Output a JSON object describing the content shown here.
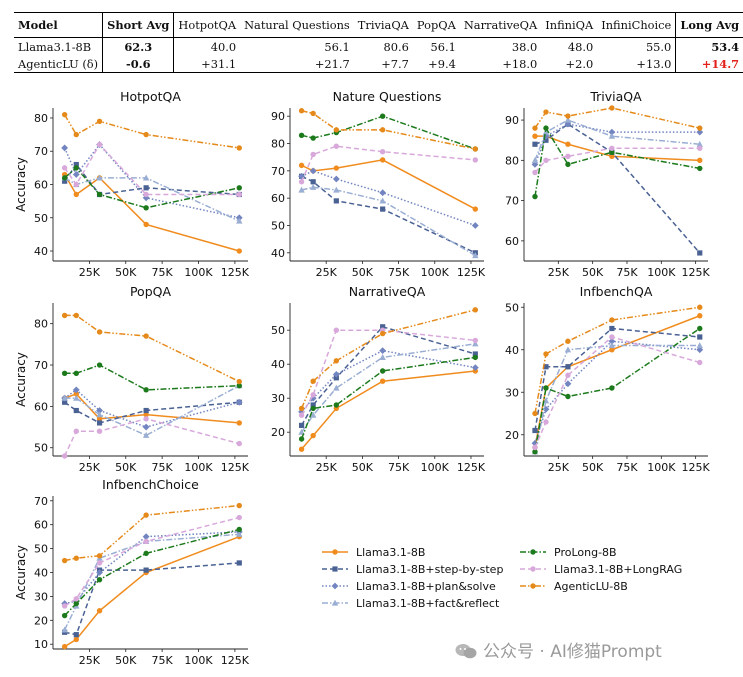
{
  "summary_table": {
    "headers": [
      "Model",
      "Short Avg",
      "HotpotQA",
      "Natural Questions",
      "TriviaQA",
      "PopQA",
      "NarrativeQA",
      "InfiniQA",
      "InfiniChoice",
      "Long Avg"
    ],
    "rows": [
      {
        "model": "Llama3.1-8B",
        "short_avg": "62.3",
        "values": [
          "40.0",
          "56.1",
          "80.6",
          "56.1",
          "38.0",
          "48.0",
          "55.0"
        ],
        "long_avg": "53.4"
      },
      {
        "model": "AgenticLU (δ)",
        "short_avg": "-0.6",
        "values": [
          "+31.1",
          "+21.7",
          "+7.7",
          "+9.4",
          "+18.0",
          "+2.0",
          "+13.0"
        ],
        "long_avg": "+14.7"
      }
    ]
  },
  "watermark": {
    "text": "公众号 · AI修猫Prompt"
  },
  "chart_data": {
    "type": "line",
    "x": [
      8,
      16,
      32,
      64,
      128
    ],
    "x_ticks": [
      25,
      50,
      75,
      100,
      125
    ],
    "x_tick_labels": [
      "25K",
      "50K",
      "75K",
      "100K",
      "125K"
    ],
    "xlim": [
      0,
      134
    ],
    "ylabel": "Accuracy",
    "series_styles": [
      {
        "name": "Llama3.1-8B",
        "color": "#f08c1e",
        "dash": "solid",
        "marker": "circle"
      },
      {
        "name": "Llama3.1-8B+step-by-step",
        "color": "#4a6193",
        "dash": "dashed",
        "marker": "square"
      },
      {
        "name": "Llama3.1-8B+plan&solve",
        "color": "#7285c0",
        "dash": "dotted",
        "marker": "diamond"
      },
      {
        "name": "Llama3.1-8B+fact&reflect",
        "color": "#9aaed3",
        "dash": "dashdot",
        "marker": "triangle"
      },
      {
        "name": "ProLong-8B",
        "color": "#1c7a1c",
        "dash": "dashdot",
        "marker": "circle"
      },
      {
        "name": "Llama3.1-8B+LongRAG",
        "color": "#d8a8db",
        "dash": "dashed",
        "marker": "circle"
      },
      {
        "name": "AgenticLU-8B",
        "color": "#e58a1a",
        "dash": "dashdotdot",
        "marker": "circle"
      }
    ],
    "subplots": [
      {
        "title": "HotpotQA",
        "ylim": [
          37,
          83
        ],
        "yticks": [
          40,
          50,
          60,
          70,
          80
        ],
        "series": [
          {
            "name": "Llama3.1-8B",
            "values": [
              63,
              57,
              62,
              48,
              40
            ]
          },
          {
            "name": "Llama3.1-8B+step-by-step",
            "values": [
              61,
              66,
              57,
              59,
              57
            ]
          },
          {
            "name": "Llama3.1-8B+plan&solve",
            "values": [
              71,
              63,
              72,
              56,
              50
            ]
          },
          {
            "name": "Llama3.1-8B+fact&reflect",
            "values": [
              62,
              60,
              62,
              62,
              49
            ]
          },
          {
            "name": "ProLong-8B",
            "values": [
              62,
              65,
              57,
              53,
              59
            ]
          },
          {
            "name": "Llama3.1-8B+LongRAG",
            "values": [
              65,
              60,
              72,
              57,
              57
            ]
          },
          {
            "name": "AgenticLU-8B",
            "values": [
              81,
              75,
              79,
              75,
              71
            ]
          }
        ]
      },
      {
        "title": "Nature Questions",
        "ylim": [
          37,
          93
        ],
        "yticks": [
          40,
          50,
          60,
          70,
          80,
          90
        ],
        "series": [
          {
            "name": "Llama3.1-8B",
            "values": [
              72,
              70,
              71,
              74,
              56
            ]
          },
          {
            "name": "Llama3.1-8B+step-by-step",
            "values": [
              68,
              66,
              59,
              56,
              40
            ]
          },
          {
            "name": "Llama3.1-8B+plan&solve",
            "values": [
              68,
              70,
              67,
              62,
              50
            ]
          },
          {
            "name": "Llama3.1-8B+fact&reflect",
            "values": [
              63,
              64,
              63,
              59,
              39
            ]
          },
          {
            "name": "ProLong-8B",
            "values": [
              83,
              82,
              84,
              90,
              78
            ]
          },
          {
            "name": "Llama3.1-8B+LongRAG",
            "values": [
              66,
              76,
              79,
              77,
              74
            ]
          },
          {
            "name": "AgenticLU-8B",
            "values": [
              92,
              91,
              85,
              85,
              78
            ]
          }
        ]
      },
      {
        "title": "TriviaQA",
        "ylim": [
          55,
          93
        ],
        "yticks": [
          60,
          70,
          80,
          90
        ],
        "series": [
          {
            "name": "Llama3.1-8B",
            "values": [
              86,
              86,
              84,
              81,
              80
            ]
          },
          {
            "name": "Llama3.1-8B+step-by-step",
            "values": [
              84,
              85,
              89,
              82,
              57
            ]
          },
          {
            "name": "Llama3.1-8B+plan&solve",
            "values": [
              79,
              86,
              89,
              87,
              87
            ]
          },
          {
            "name": "Llama3.1-8B+fact&reflect",
            "values": [
              80,
              87,
              90,
              86,
              84
            ]
          },
          {
            "name": "ProLong-8B",
            "values": [
              71,
              88,
              79,
              82,
              78
            ]
          },
          {
            "name": "Llama3.1-8B+LongRAG",
            "values": [
              77,
              80,
              81,
              83,
              83
            ]
          },
          {
            "name": "AgenticLU-8B",
            "values": [
              88,
              92,
              91,
              93,
              88
            ]
          }
        ]
      },
      {
        "title": "PopQA",
        "ylim": [
          48,
          85
        ],
        "yticks": [
          50,
          60,
          70,
          80
        ],
        "series": [
          {
            "name": "Llama3.1-8B",
            "values": [
              62,
              63,
              57,
              58,
              56
            ]
          },
          {
            "name": "Llama3.1-8B+step-by-step",
            "values": [
              61,
              59,
              56,
              59,
              61
            ]
          },
          {
            "name": "Llama3.1-8B+plan&solve",
            "values": [
              62,
              64,
              59,
              55,
              61
            ]
          },
          {
            "name": "Llama3.1-8B+fact&reflect",
            "values": [
              62,
              62,
              58,
              53,
              65
            ]
          },
          {
            "name": "ProLong-8B",
            "values": [
              68,
              68,
              70,
              64,
              65
            ]
          },
          {
            "name": "Llama3.1-8B+LongRAG",
            "values": [
              48,
              54,
              54,
              57,
              51
            ]
          },
          {
            "name": "AgenticLU-8B",
            "values": [
              82,
              82,
              78,
              77,
              66
            ]
          }
        ]
      },
      {
        "title": "NarrativeQA",
        "ylim": [
          13,
          58
        ],
        "yticks": [
          20,
          30,
          40,
          50
        ],
        "series": [
          {
            "name": "Llama3.1-8B",
            "values": [
              15,
              19,
              27,
              35,
              38
            ]
          },
          {
            "name": "Llama3.1-8B+step-by-step",
            "values": [
              22,
              28,
              36,
              51,
              43
            ]
          },
          {
            "name": "Llama3.1-8B+plan&solve",
            "values": [
              26,
              30,
              37,
              44,
              39
            ]
          },
          {
            "name": "Llama3.1-8B+fact&reflect",
            "values": [
              20,
              25,
              33,
              42,
              46
            ]
          },
          {
            "name": "ProLong-8B",
            "values": [
              18,
              27,
              28,
              38,
              42
            ]
          },
          {
            "name": "Llama3.1-8B+LongRAG",
            "values": [
              25,
              31,
              50,
              50,
              47
            ]
          },
          {
            "name": "AgenticLU-8B",
            "values": [
              27,
              35,
              41,
              49,
              56
            ]
          }
        ]
      },
      {
        "title": "InfbenchQA",
        "ylim": [
          15,
          51
        ],
        "yticks": [
          20,
          30,
          40,
          50
        ],
        "series": [
          {
            "name": "Llama3.1-8B",
            "values": [
              17,
              31,
              36,
              40,
              48
            ]
          },
          {
            "name": "Llama3.1-8B+step-by-step",
            "values": [
              21,
              36,
              36,
              45,
              43
            ]
          },
          {
            "name": "Llama3.1-8B+plan&solve",
            "values": [
              18,
              26,
              32,
              42,
              40
            ]
          },
          {
            "name": "Llama3.1-8B+fact&reflect",
            "values": [
              16,
              28,
              40,
              41,
              41
            ]
          },
          {
            "name": "ProLong-8B",
            "values": [
              16,
              31,
              29,
              31,
              45
            ]
          },
          {
            "name": "Llama3.1-8B+LongRAG",
            "values": [
              17,
              23,
              34,
              43,
              37
            ]
          },
          {
            "name": "AgenticLU-8B",
            "values": [
              25,
              39,
              42,
              47,
              50
            ]
          }
        ]
      },
      {
        "title": "InfbenchChoice",
        "ylim": [
          8,
          72
        ],
        "yticks": [
          10,
          20,
          30,
          40,
          50,
          60,
          70
        ],
        "series": [
          {
            "name": "Llama3.1-8B",
            "values": [
              9,
              12,
              24,
              40,
              55
            ]
          },
          {
            "name": "Llama3.1-8B+step-by-step",
            "values": [
              15,
              14,
              41,
              41,
              44
            ]
          },
          {
            "name": "Llama3.1-8B+plan&solve",
            "values": [
              27,
              28,
              40,
              55,
              57
            ]
          },
          {
            "name": "Llama3.1-8B+fact&reflect",
            "values": [
              16,
              26,
              46,
              53,
              56
            ]
          },
          {
            "name": "ProLong-8B",
            "values": [
              22,
              27,
              37,
              48,
              58
            ]
          },
          {
            "name": "Llama3.1-8B+LongRAG",
            "values": [
              26,
              29,
              44,
              53,
              63
            ]
          },
          {
            "name": "AgenticLU-8B",
            "values": [
              45,
              46,
              47,
              64,
              68
            ]
          }
        ]
      }
    ],
    "legend": {
      "placement": "bottom-right",
      "columns": 2,
      "column_order": [
        [
          "Llama3.1-8B",
          "Llama3.1-8B+step-by-step",
          "Llama3.1-8B+plan&solve",
          "Llama3.1-8B+fact&reflect"
        ],
        [
          "ProLong-8B",
          "Llama3.1-8B+LongRAG",
          "AgenticLU-8B"
        ]
      ]
    }
  }
}
